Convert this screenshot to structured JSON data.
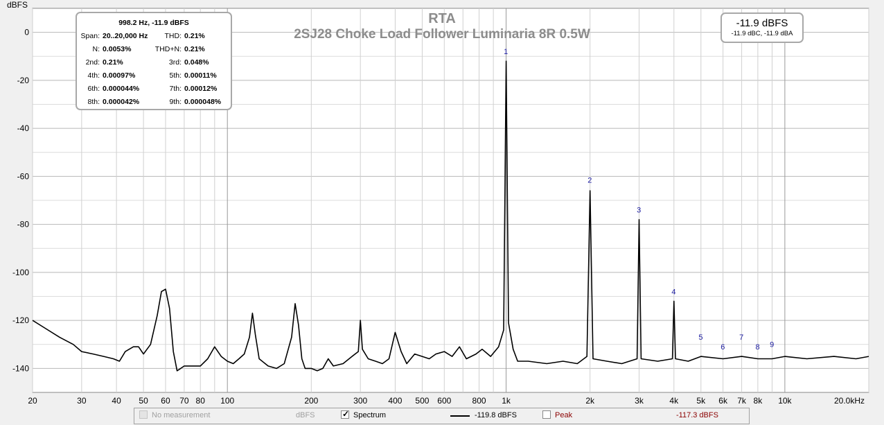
{
  "chart_data": {
    "type": "line",
    "title": "RTA",
    "subtitle": "2SJ28 Choke Load Follower Luminaria 8R 0.5W",
    "ylabel": "dBFS",
    "xlim": [
      20,
      20000
    ],
    "ylim": [
      -150,
      10
    ],
    "x_scale": "log",
    "grid": true,
    "y_ticks": [
      0,
      -20,
      -40,
      -60,
      -80,
      -100,
      -120,
      -140
    ],
    "y_tick_labels": [
      "0",
      "-20",
      "-40",
      "-60",
      "-80",
      "-100",
      "-120",
      "-140"
    ],
    "x_ticks": [
      20,
      30,
      40,
      50,
      60,
      70,
      80,
      100,
      200,
      300,
      400,
      500,
      600,
      800,
      1000,
      2000,
      3000,
      4000,
      5000,
      6000,
      7000,
      8000,
      10000,
      20000
    ],
    "x_tick_labels": [
      "20",
      "30",
      "40",
      "50",
      "60",
      "70",
      "80",
      "100",
      "200",
      "300",
      "400",
      "500",
      "600",
      "800",
      "1k",
      "2k",
      "3k",
      "4k",
      "5k",
      "6k",
      "7k",
      "8k",
      "10k",
      "20.0kHz"
    ],
    "series": [
      {
        "name": "Spectrum",
        "color": "#000000",
        "x": [
          20,
          22,
          25,
          28,
          30,
          33,
          36,
          39,
          41,
          43,
          46,
          48,
          50,
          53,
          56,
          58,
          60,
          62,
          64,
          66,
          68,
          70,
          75,
          80,
          85,
          90,
          95,
          100,
          105,
          110,
          115,
          120,
          123,
          126,
          130,
          140,
          150,
          160,
          170,
          175,
          180,
          185,
          190,
          200,
          210,
          220,
          230,
          240,
          260,
          280,
          295,
          300,
          305,
          320,
          340,
          360,
          380,
          400,
          420,
          440,
          470,
          500,
          530,
          560,
          600,
          640,
          680,
          720,
          780,
          820,
          880,
          940,
          980,
          1000,
          1020,
          1060,
          1100,
          1200,
          1400,
          1600,
          1800,
          1950,
          2000,
          2050,
          2300,
          2600,
          2950,
          3000,
          3050,
          3500,
          3950,
          4000,
          4050,
          4500,
          5000,
          6000,
          7000,
          8000,
          9000,
          10000,
          12000,
          15000,
          18000,
          20000
        ],
        "y": [
          -120,
          -123,
          -127,
          -130,
          -133,
          -134,
          -135,
          -136,
          -137,
          -133,
          -131,
          -131,
          -134,
          -130,
          -118,
          -108,
          -107,
          -115,
          -133,
          -141,
          -140,
          -139,
          -139,
          -139,
          -136,
          -131,
          -135,
          -137,
          -138,
          -136,
          -134,
          -127,
          -117,
          -126,
          -136,
          -139,
          -140,
          -138,
          -127,
          -113,
          -122,
          -136,
          -140,
          -140,
          -141,
          -140,
          -136,
          -139,
          -138,
          -135,
          -133,
          -120,
          -132,
          -136,
          -137,
          -138,
          -136,
          -125,
          -133,
          -138,
          -134,
          -135,
          -136,
          -134,
          -133,
          -135,
          -131,
          -136,
          -134,
          -132,
          -135,
          -131,
          -124,
          -12,
          -121,
          -132,
          -137,
          -137,
          -138,
          -137,
          -138,
          -135,
          -66,
          -136,
          -137,
          -138,
          -136,
          -78,
          -136,
          -137,
          -136,
          -112,
          -136,
          -137,
          -135,
          -136,
          -135,
          -136,
          -136,
          -135,
          -136,
          -135,
          -136,
          -135
        ]
      }
    ],
    "harmonic_markers": [
      {
        "label": "1",
        "x": 998.2,
        "y": -11.9
      },
      {
        "label": "2",
        "x": 1996,
        "y": -65.5
      },
      {
        "label": "3",
        "x": 2995,
        "y": -78
      },
      {
        "label": "4",
        "x": 3993,
        "y": -112
      },
      {
        "label": "5",
        "x": 4991,
        "y": -131
      },
      {
        "label": "6",
        "x": 5989,
        "y": -135
      },
      {
        "label": "7",
        "x": 6987,
        "y": -131
      },
      {
        "label": "8",
        "x": 7986,
        "y": -135
      },
      {
        "label": "9",
        "x": 8984,
        "y": -134
      }
    ]
  },
  "stats_box": {
    "header": "998.2 Hz, -11.9 dBFS",
    "rows": [
      {
        "l1": "Span:",
        "v1": "20..20,000 Hz",
        "l2": "THD:",
        "v2": "0.21%"
      },
      {
        "l1": "N:",
        "v1": "0.0053%",
        "l2": "THD+N:",
        "v2": "0.21%"
      },
      {
        "l1": "2nd:",
        "v1": "0.21%",
        "l2": "3rd:",
        "v2": "0.048%"
      },
      {
        "l1": "4th:",
        "v1": "0.00097%",
        "l2": "5th:",
        "v2": "0.00011%"
      },
      {
        "l1": "6th:",
        "v1": "0.000044%",
        "l2": "7th:",
        "v2": "0.00012%"
      },
      {
        "l1": "8th:",
        "v1": "0.000042%",
        "l2": "9th:",
        "v2": "0.000048%"
      }
    ]
  },
  "level_box": {
    "main": "-11.9 dBFS",
    "sub": "-11.9 dBC, -11.9 dBA"
  },
  "legend": {
    "no_measurement": "No measurement",
    "no_measurement_unit": "dBFS",
    "spectrum": "Spectrum",
    "spectrum_value": "-119.8 dBFS",
    "peak": "Peak",
    "peak_value": "-117.3 dBFS",
    "peak_color": "#8b0000"
  }
}
